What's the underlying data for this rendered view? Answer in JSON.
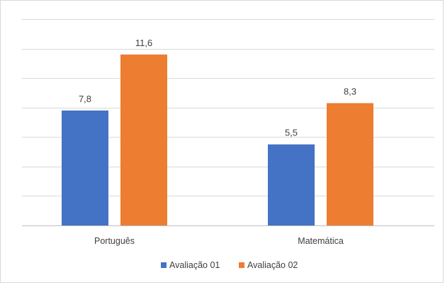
{
  "chart_data": {
    "type": "bar",
    "categories": [
      "Português",
      "Matemática"
    ],
    "series": [
      {
        "name": "Avaliação 01",
        "values": [
          7.8,
          5.5
        ],
        "labels": [
          "7,8",
          "5,5"
        ],
        "color": "#4472c4"
      },
      {
        "name": "Avaliação 02",
        "values": [
          11.6,
          8.3
        ],
        "labels": [
          "11,6",
          "8,3"
        ],
        "color": "#ed7d31"
      }
    ],
    "ylim": [
      0,
      14
    ],
    "ytick_step": 2,
    "show_y_ticklabels": false,
    "grid": true,
    "gridline_color": "#d9d9d9",
    "legend": "bottom"
  }
}
